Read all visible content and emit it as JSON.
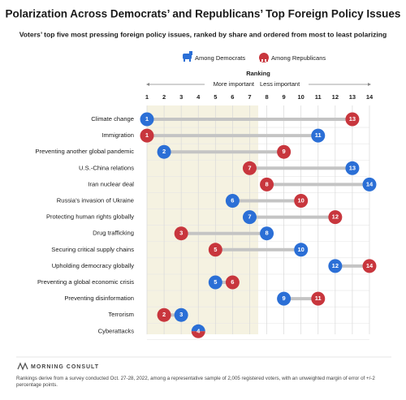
{
  "chart_data": {
    "type": "dumbbell",
    "title": "Polarization Across Democrats’ and Republicans’ Top Foreign Policy Issues",
    "subtitle": "Voters’ top five most pressing foreign policy issues, ranked by share and ordered from most to least polarizing",
    "axis_title": "Ranking",
    "more_label": "More important",
    "less_label": "Less important",
    "categories": [
      "Climate change",
      "Immigration",
      "Preventing another global pandemic",
      "U.S.-China relations",
      "Iran nuclear deal",
      "Russia’s invasion of Ukraine",
      "Protecting human rights globally",
      "Drug trafficking",
      "Securing critical supply chains",
      "Upholding democracy globally",
      "Preventing a global economic crisis",
      "Preventing disinformation",
      "Terrorism",
      "Cyberattacks"
    ],
    "series": [
      {
        "name": "Among Democrats",
        "color": "#2b6fd6",
        "values": [
          1,
          11,
          2,
          13,
          14,
          6,
          7,
          8,
          10,
          12,
          5,
          9,
          3,
          4
        ]
      },
      {
        "name": "Among Republicans",
        "color": "#c8363d",
        "values": [
          13,
          1,
          9,
          7,
          8,
          10,
          12,
          3,
          5,
          14,
          6,
          11,
          2,
          4
        ]
      }
    ],
    "xlim": [
      1,
      14
    ],
    "xticks": [
      1,
      2,
      3,
      4,
      5,
      6,
      7,
      8,
      9,
      10,
      11,
      12,
      13,
      14
    ],
    "shaded_xlim": [
      1,
      7.5
    ],
    "grid": true,
    "source": "MORNING CONSULT",
    "note": "Rankings derive from a survey conducted Oct. 27-28, 2022, among a representative sample of 2,005 registered voters, with an unweighted margin of error of +/-2 percentage points."
  }
}
